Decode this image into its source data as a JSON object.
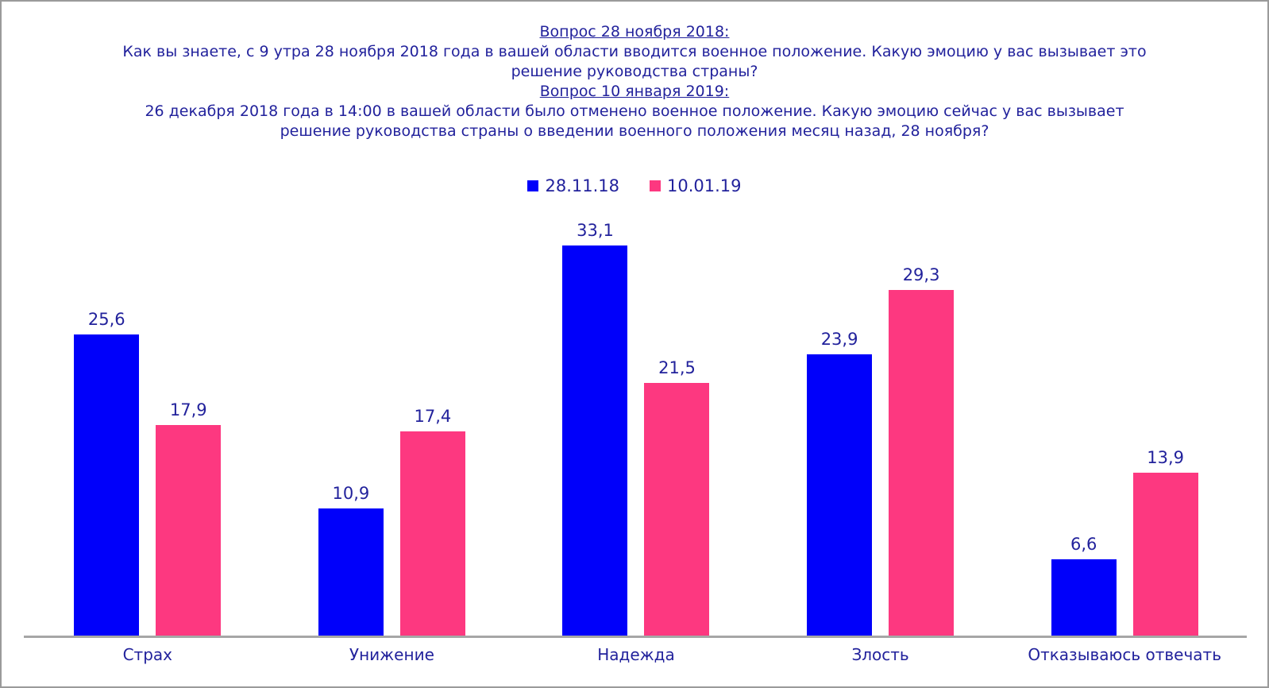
{
  "title": {
    "q1_heading": "Вопрос 28 ноября 2018:",
    "q1_text": "Как вы знаете, с 9 утра 28 ноября 2018 года в вашей области вводится военное положение. Какую эмоцию у вас вызывает это решение руководства страны?",
    "q2_heading": "Вопрос 10 января 2019:",
    "q2_text": "26 декабря 2018 года в 14:00 в вашей области было отменено военное положение. Какую эмоцию сейчас у вас вызывает решение руководства страны о введении военного положения месяц назад, 28 ноября?"
  },
  "chart_data": {
    "type": "bar",
    "categories": [
      "Страх",
      "Унижение",
      "Надежда",
      "Злость",
      "Отказываюсь отвечать"
    ],
    "series": [
      {
        "name": "28.11.18",
        "color": "#0000fa",
        "values": [
          25.6,
          10.9,
          33.1,
          23.9,
          6.6
        ],
        "labels": [
          "25,6",
          "10,9",
          "33,1",
          "23,9",
          "6,6"
        ]
      },
      {
        "name": "10.01.19",
        "color": "#fd3880",
        "values": [
          17.9,
          17.4,
          21.5,
          29.3,
          13.9
        ],
        "labels": [
          "17,9",
          "17,4",
          "21,5",
          "29,3",
          "13,9"
        ]
      }
    ],
    "ylim": [
      0,
      35
    ],
    "xlabel": "",
    "ylabel": "",
    "grid": false,
    "legend_position": "top",
    "decimal_separator": ","
  },
  "colors": {
    "bar_blue": "#0000fa",
    "bar_pink": "#fd3880",
    "text_navy": "#22229c",
    "axis_gray": "#a6a6a6",
    "frame_gray": "#9a9a9a"
  }
}
